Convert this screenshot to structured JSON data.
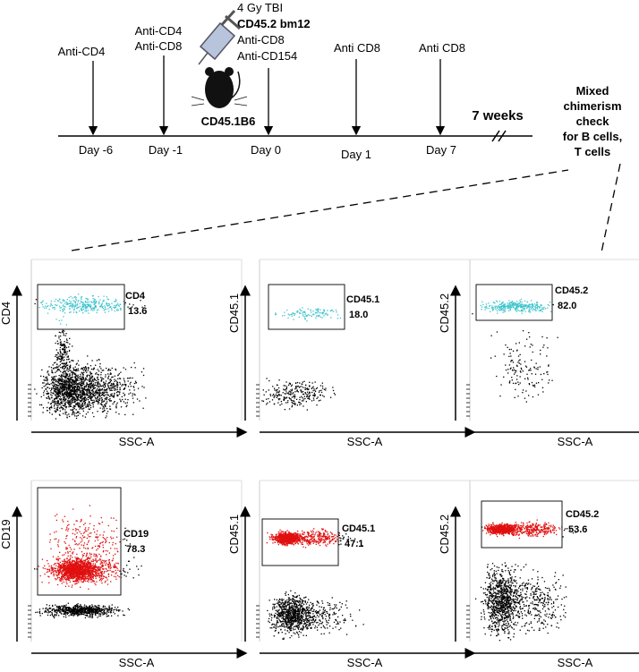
{
  "timeline": {
    "events": [
      {
        "treatment": [
          "Anti-CD4"
        ],
        "day": "Day -6"
      },
      {
        "treatment": [
          "Anti-CD4",
          "Anti-CD8"
        ],
        "day": "Day -1"
      },
      {
        "treatment": [
          "4 Gy TBI",
          "CD45.2 bm12",
          "Anti-CD8",
          "Anti-CD154"
        ],
        "day": "Day 0"
      },
      {
        "treatment": [
          "Anti CD8"
        ],
        "day": "Day 1"
      },
      {
        "treatment": [
          "Anti CD8"
        ],
        "day": "Day 7"
      }
    ],
    "recipient": "CD45.1B6",
    "duration": "7 weeks",
    "check": [
      "Mixed",
      "chimerism",
      "check",
      "for B cells,",
      "T cells"
    ]
  },
  "plots": [
    {
      "y_label": "CD4",
      "x_label": "SSC-A",
      "gate_name": "CD4",
      "gate_value": "13.6",
      "color": "#3fc4cc"
    },
    {
      "y_label": "CD45.1",
      "x_label": "SSC-A",
      "gate_name": "CD45.1",
      "gate_value": "18.0",
      "color": "#3fc4cc"
    },
    {
      "y_label": "CD45.2",
      "x_label": "SSC-A",
      "gate_name": "CD45.2",
      "gate_value": "82.0",
      "color": "#3fc4cc"
    },
    {
      "y_label": "CD19",
      "x_label": "SSC-A",
      "gate_name": "CD19",
      "gate_value": "78.3",
      "color": "#e01010"
    },
    {
      "y_label": "CD45.1",
      "x_label": "SSC-A",
      "gate_name": "CD45.1",
      "gate_value": "47.1",
      "color": "#e01010"
    },
    {
      "y_label": "CD45.2",
      "x_label": "SSC-A",
      "gate_name": "CD45.2",
      "gate_value": "53.6",
      "color": "#e01010"
    }
  ]
}
